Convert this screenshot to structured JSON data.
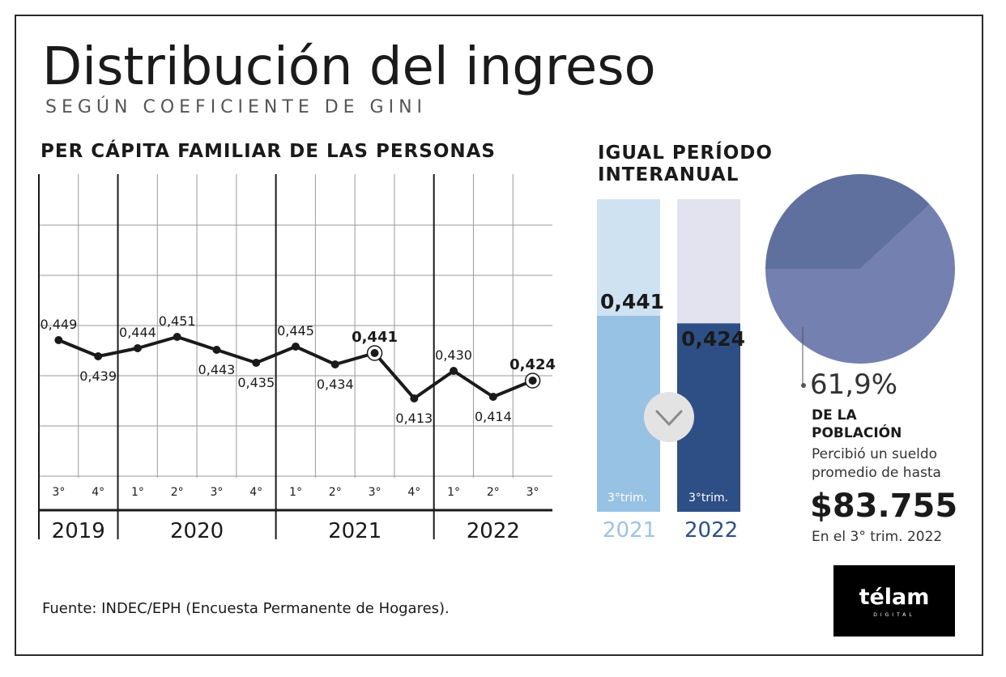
{
  "title": "Distribución del ingreso",
  "subtitle": "SEGÚN COEFICIENTE DE GINI",
  "source": "Fuente: INDEC/EPH (Encuesta Permanente de Hogares).",
  "logo": {
    "text": "télam",
    "sub": "DIGITAL"
  },
  "chart_data": [
    {
      "type": "line",
      "title": "PER CÁPITA FAMILIAR DE LAS PERSONAS",
      "x": [
        "3°",
        "4°",
        "1°",
        "2°",
        "3°",
        "4°",
        "1°",
        "2°",
        "3°",
        "4°",
        "1°",
        "2°",
        "3°"
      ],
      "values": [
        0.449,
        0.439,
        0.444,
        0.451,
        0.443,
        0.435,
        0.445,
        0.434,
        0.441,
        0.413,
        0.43,
        0.414,
        0.424
      ],
      "value_labels": [
        "0,449",
        "0,439",
        "0,444",
        "0,451",
        "0,443",
        "0,435",
        "0,445",
        "0,434",
        "0,441",
        "0,413",
        "0,430",
        "0,414",
        "0,424"
      ],
      "highlighted": [
        8,
        12
      ],
      "year_groups": [
        {
          "label": "2019",
          "count": 2
        },
        {
          "label": "2020",
          "count": 4
        },
        {
          "label": "2021",
          "count": 4
        },
        {
          "label": "2022",
          "count": 3
        }
      ],
      "grid": true
    },
    {
      "type": "bar",
      "title": "IGUAL PERÍODO INTERANUAL",
      "title_lines": [
        "IGUAL PERÍODO",
        "INTERANUAL"
      ],
      "categories": [
        "2021",
        "2022"
      ],
      "values": [
        0.441,
        0.424
      ],
      "value_labels": [
        "0,441",
        "0,424"
      ],
      "bar_labels": [
        "3°trim.",
        "3°trim."
      ],
      "colors": [
        "#97c2e3",
        "#2e4f86"
      ],
      "track_colors": [
        "#cfe2f2",
        "#e2e3ee"
      ],
      "year_colors": [
        "#9cc3e4",
        "#2e4f86"
      ],
      "arrow": "chevron-down-icon"
    },
    {
      "type": "pie",
      "values": [
        61.9,
        38.1
      ],
      "colors": [
        "#7480b0",
        "#5f6f9e"
      ],
      "label": "61,9%",
      "caption_bold": [
        "DE LA",
        "POBLACIÓN"
      ],
      "caption": [
        "Percibió un sueldo",
        "promedio de hasta"
      ],
      "amount": "$83.755",
      "period": "En el 3° trim. 2022"
    }
  ]
}
